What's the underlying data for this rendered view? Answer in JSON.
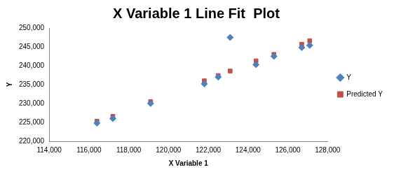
{
  "chart_data": {
    "type": "scatter",
    "title": "X Variable 1 Line Fit  Plot",
    "x_label": "X Variable 1",
    "y_label": "Y",
    "x": [
      116400,
      117200,
      119100,
      121800,
      122500,
      123100,
      124400,
      125300,
      126700,
      127100
    ],
    "series": [
      {
        "name": "Y",
        "color": "#4f81bd",
        "marker": "diamond",
        "values": [
          224800,
          226000,
          230000,
          235200,
          237000,
          247500,
          240300,
          242500,
          244800,
          245400
        ]
      },
      {
        "name": "Predicted Y",
        "color": "#c0504d",
        "marker": "square",
        "values": [
          225300,
          226600,
          230500,
          236000,
          237400,
          238600,
          241300,
          243000,
          245700,
          246600
        ]
      }
    ],
    "xlim": [
      114000,
      128000
    ],
    "xticks": [
      {
        "value": 114000,
        "label": "114,000"
      },
      {
        "value": 116000,
        "label": "116,000"
      },
      {
        "value": 118000,
        "label": "118,000"
      },
      {
        "value": 120000,
        "label": "120,000"
      },
      {
        "value": 122000,
        "label": "122,000"
      },
      {
        "value": 124000,
        "label": "124,000"
      },
      {
        "value": 126000,
        "label": "126,000"
      },
      {
        "value": 128000,
        "label": "128,000"
      }
    ],
    "ylim": [
      220000,
      250000
    ],
    "yticks": [
      {
        "value": 220000,
        "label": "220,000"
      },
      {
        "value": 225000,
        "label": "225,000"
      },
      {
        "value": 230000,
        "label": "230,000"
      },
      {
        "value": 235000,
        "label": "235,000"
      },
      {
        "value": 240000,
        "label": "240,000"
      },
      {
        "value": 245000,
        "label": "245,000"
      },
      {
        "value": 250000,
        "label": "250,000"
      }
    ],
    "grid": false,
    "legend": "right"
  }
}
